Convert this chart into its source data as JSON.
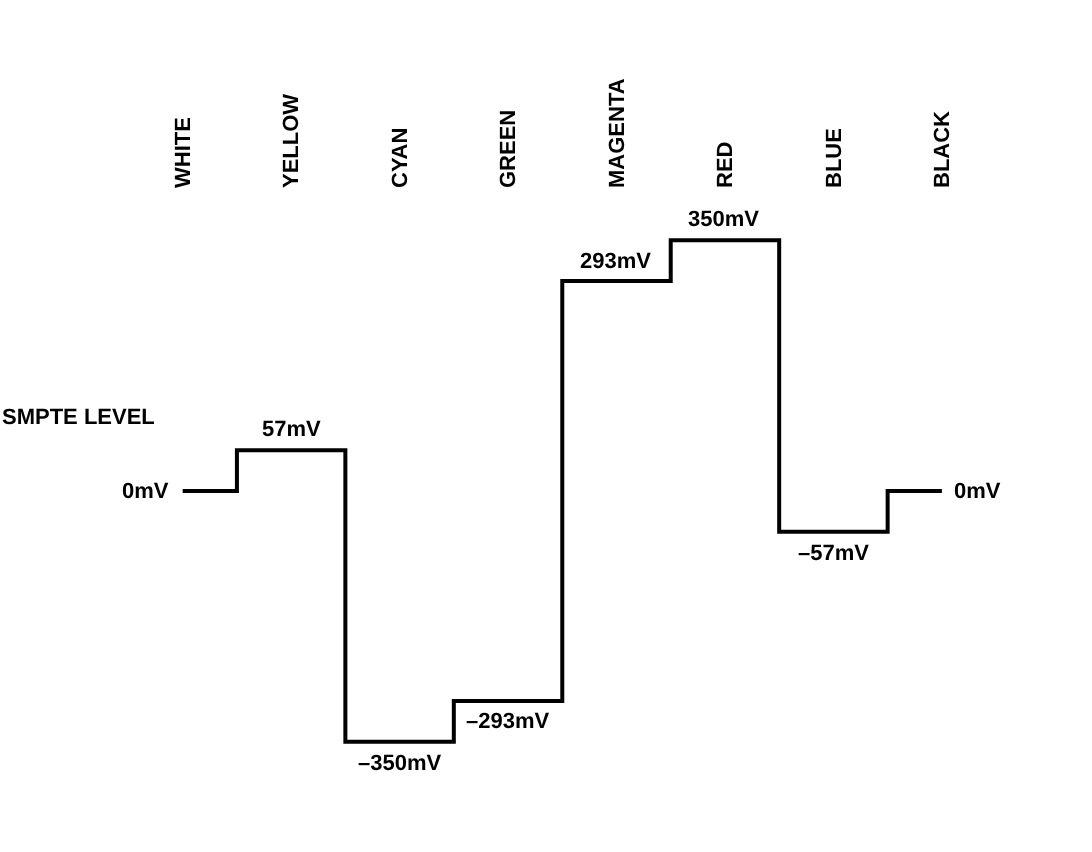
{
  "chart_data": {
    "type": "step",
    "categories": [
      "WHITE",
      "YELLOW",
      "CYAN",
      "GREEN",
      "MAGENTA",
      "RED",
      "BLUE",
      "BLACK"
    ],
    "values": [
      0,
      57,
      -350,
      -293,
      293,
      350,
      -57,
      0
    ],
    "value_labels": [
      "0mV",
      "57mV",
      "–350mV",
      "–293mV",
      "293mV",
      "350mV",
      "–57mV",
      "0mV"
    ],
    "color": "#000000",
    "annotations": [
      "SMPTE LEVEL"
    ],
    "grid": false,
    "legend": false,
    "marker": "none",
    "line_style": "solid"
  }
}
